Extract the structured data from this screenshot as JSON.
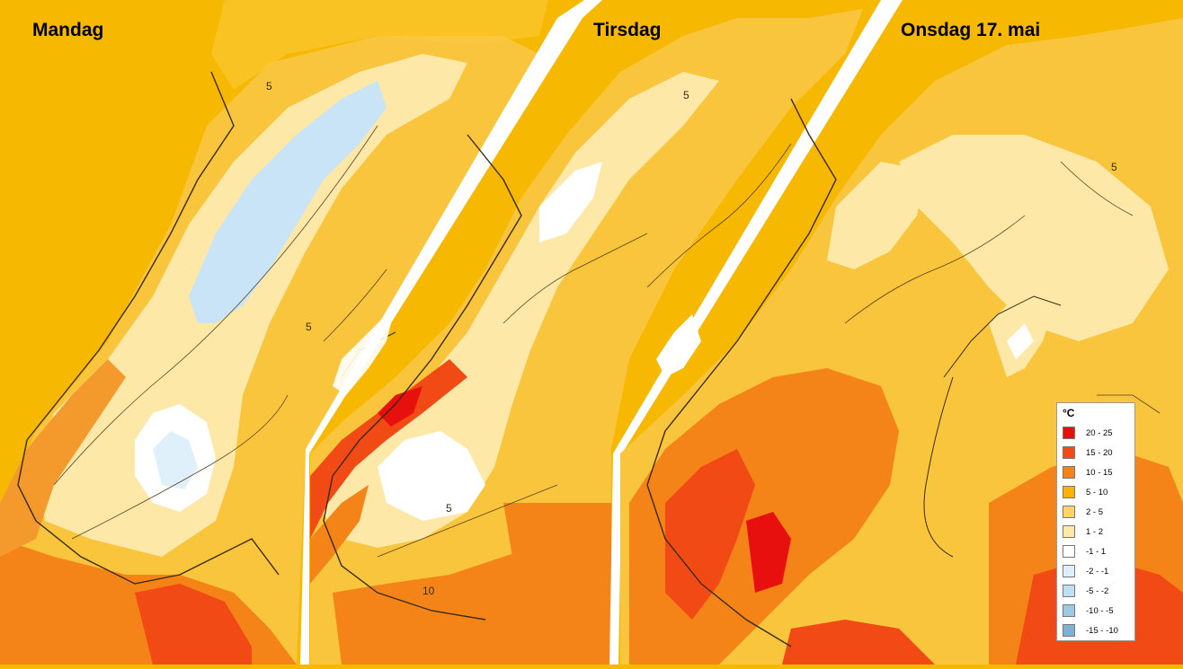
{
  "panels": [
    {
      "title": "Mandag"
    },
    {
      "title": "Tirsdag"
    },
    {
      "title": "Onsdag 17. mai"
    }
  ],
  "legend": {
    "unit": "°C",
    "entries": [
      {
        "label": "20 - 25",
        "color": "#e8100e"
      },
      {
        "label": "15 - 20",
        "color": "#f24a14"
      },
      {
        "label": "10 - 15",
        "color": "#f58418"
      },
      {
        "label": "5 - 10",
        "color": "#f9b300"
      },
      {
        "label": "2 - 5",
        "color": "#fdd36a"
      },
      {
        "label": "1 - 2",
        "color": "#fde8a8"
      },
      {
        "label": "-1 - 1",
        "color": "#ffffff"
      },
      {
        "label": "-2 - -1",
        "color": "#dff0fa"
      },
      {
        "label": "-5 - -2",
        "color": "#bfe0f4"
      },
      {
        "label": "-10 - -5",
        "color": "#9cc9e4"
      },
      {
        "label": "-15 - -10",
        "color": "#7fb1d3"
      }
    ]
  },
  "contour_labels": [
    "5",
    "5",
    "5",
    "5",
    "10",
    "5"
  ]
}
